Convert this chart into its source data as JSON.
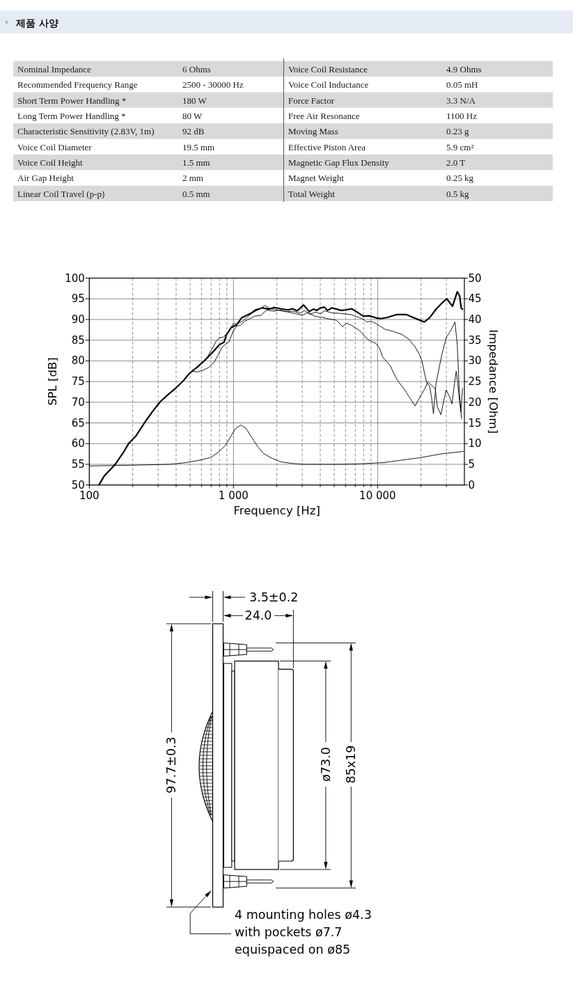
{
  "chart_data": [
    {
      "type": "other",
      "title": "제품 사양",
      "annotations": [
        "Nominal Impedance",
        "6 Ohms",
        "Voice Coil Resistance",
        "4.9 Ohms",
        "Recommended Frequency Range",
        "2500 - 30000 Hz",
        "Voice Coil Inductance",
        "0.05 mH",
        "Short Term Power Handling *",
        "180 W",
        "Force Factor",
        "3.3 N/A",
        "Long Term Power Handling *",
        "80 W",
        "Free Air Resonance",
        "1100 Hz",
        "Characteristic Sensitivity (2.83V, 1m)",
        "92 dB",
        "Moving Mass",
        "0.23 g",
        "Voice Coil Diameter",
        "19.5 mm",
        "Effective Piston Area",
        "5.9 cm²",
        "Voice Coil Height",
        "1.5 mm",
        "Magnetic Gap Flux Density",
        "2.0 T",
        "Air Gap Height",
        "2 mm",
        "Magnet Weight",
        "0.25 kg",
        "Linear Coil Travel (p-p)",
        "0.5 mm",
        "Total Weight",
        "0.5 kg"
      ]
    },
    {
      "type": "line",
      "xlabel": "Frequency [Hz]",
      "ylabel": "SPL [dB]",
      "y2label": "Impedance [Ohm]",
      "log": "x",
      "grid": true,
      "xlim": [
        100,
        40000
      ],
      "xticks": [
        100,
        {
          "value": 200,
          "label": null
        },
        {
          "value": 300,
          "label": null
        },
        {
          "value": 400,
          "label": null
        },
        {
          "value": 500,
          "label": null
        },
        {
          "value": 600,
          "label": null
        },
        {
          "value": 700,
          "label": null
        },
        {
          "value": 800,
          "label": null
        },
        {
          "value": 900,
          "label": null
        },
        {
          "value": 1000,
          "label": "1 000"
        },
        {
          "value": 2000,
          "label": null
        },
        {
          "value": 3000,
          "label": null
        },
        {
          "value": 4000,
          "label": null
        },
        {
          "value": 5000,
          "label": null
        },
        {
          "value": 6000,
          "label": null
        },
        {
          "value": 7000,
          "label": null
        },
        {
          "value": 8000,
          "label": null
        },
        {
          "value": 9000,
          "label": null
        },
        {
          "value": 10000,
          "label": "10 000"
        },
        {
          "value": 20000,
          "label": null
        },
        {
          "value": 30000,
          "label": null
        }
      ],
      "ylim": [
        50,
        100
      ],
      "yticks": [
        50,
        55,
        60,
        65,
        70,
        75,
        80,
        85,
        90,
        95,
        100
      ],
      "y2lim": [
        0,
        50
      ],
      "y2ticks": [
        0,
        5,
        10,
        15,
        20,
        25,
        30,
        35,
        40,
        45,
        50
      ],
      "series": [
        {
          "color": "#000000",
          "x": [
            117,
            127,
            152,
            174,
            188,
            210,
            239,
            272,
            310,
            353,
            395,
            449,
            493,
            551,
            627,
            714,
            798,
            860,
            891,
            962,
            1050,
            1140,
            1220,
            1320,
            1420,
            1590,
            1770,
            1910,
            2130,
            2380,
            2570,
            2770,
            3070,
            3350,
            3580,
            3790,
            4000,
            4280,
            4480,
            4820,
            5590,
            6020,
            6600,
            7120,
            7950,
            8730,
            9750,
            10500,
            11700,
            13600,
            15800,
            17600,
            19700,
            21100,
            22900,
            25600,
            28000,
            30200,
            33100,
            35700,
            37100,
            38000,
            38800
          ],
          "values": [
            50.1,
            52.2,
            55.1,
            58.1,
            60.1,
            61.8,
            64.8,
            67.6,
            70.1,
            71.9,
            73.3,
            75.2,
            76.9,
            78.3,
            80.0,
            82.0,
            83.9,
            84.5,
            86.2,
            88.0,
            88.7,
            90.4,
            90.9,
            91.5,
            92.3,
            92.8,
            92.5,
            92.9,
            92.6,
            92.3,
            92.6,
            92.1,
            93.5,
            91.9,
            92.5,
            92.2,
            92.8,
            93.0,
            92.2,
            92.8,
            92.2,
            92.3,
            92.6,
            91.9,
            90.8,
            90.9,
            90.4,
            90.2,
            90.5,
            91.2,
            91.2,
            90.5,
            89.8,
            89.4,
            90.4,
            92.6,
            94.0,
            95.0,
            93.2,
            96.7,
            95.7,
            92.8,
            92.5
          ]
        },
        {
          "color": "#000000",
          "x": [
            520,
            560,
            600,
            650,
            700,
            760,
            800,
            850,
            900,
            950,
            1000,
            1060,
            1150,
            1250,
            1350,
            1500,
            1650,
            1800,
            2000,
            2300,
            2600,
            2900,
            3100,
            3400,
            3700,
            4000,
            4300,
            4800,
            5400,
            6500,
            7800,
            8400,
            9050,
            9750,
            11300,
            12600,
            14700,
            16400,
            18000,
            19400,
            20300,
            21100,
            21900,
            23000,
            23700,
            24400,
            25400,
            26500,
            28000,
            29900,
            32500,
            34400,
            35700,
            36800,
            38200
          ],
          "values": [
            77.7,
            78.3,
            79.3,
            80.6,
            82.5,
            84.8,
            85.6,
            85.7,
            86.6,
            87.8,
            89.0,
            88.9,
            89.5,
            90.6,
            91.6,
            92.4,
            93.4,
            92.6,
            92.3,
            91.9,
            92.0,
            91.5,
            92.2,
            91.2,
            91.8,
            91.4,
            92.1,
            91.6,
            91.5,
            91.2,
            90.2,
            89.4,
            89.6,
            89.0,
            87.6,
            87.2,
            86.4,
            85.3,
            83.6,
            81.7,
            80.0,
            77.2,
            74.7,
            73.8,
            71.0,
            67.2,
            74.4,
            77.7,
            81.7,
            85.6,
            87.6,
            89.4,
            83.9,
            73.3,
            66.0
          ]
        },
        {
          "color": "#000000",
          "x": [
            520,
            560,
            620,
            680,
            730,
            780,
            830,
            880,
            930,
            1000,
            1050,
            1120,
            1200,
            1300,
            1400,
            1550,
            1700,
            1900,
            2100,
            2400,
            2700,
            3000,
            3300,
            3600,
            3900,
            4150,
            4640,
            5190,
            5700,
            6130,
            6730,
            7520,
            8200,
            8720,
            9750,
            10300,
            10900,
            12200,
            13600,
            15200,
            17000,
            18200,
            19700,
            21300,
            22300,
            23700,
            25100,
            26000,
            27500,
            28600,
            29900,
            31300,
            32800,
            34100,
            35100,
            36000,
            37100,
            37800,
            38800
          ],
          "values": [
            77.5,
            77.3,
            77.8,
            78.5,
            79.6,
            81.3,
            83.2,
            84.0,
            84.6,
            87.3,
            88.4,
            88.6,
            89.6,
            90.2,
            90.8,
            91.0,
            92.3,
            92.0,
            92.3,
            91.8,
            91.4,
            91.0,
            91.7,
            90.9,
            90.6,
            90.5,
            90.1,
            89.8,
            88.3,
            89.1,
            88.4,
            87.3,
            85.8,
            85.0,
            84.2,
            83.1,
            80.8,
            78.9,
            75.5,
            73.3,
            70.7,
            69.1,
            71.3,
            73.3,
            74.9,
            74.1,
            73.3,
            68.8,
            67.0,
            69.9,
            73.0,
            71.6,
            69.6,
            74.4,
            77.5,
            74.4,
            69.9,
            67.6,
            73.3
          ]
        },
        {
          "color": "#000000",
          "axis": "y2",
          "x": [
            100,
            206,
            360,
            467,
            605,
            700,
            783,
            876,
            942,
            1035,
            1130,
            1220,
            1340,
            1470,
            1620,
            1840,
            2130,
            2560,
            3090,
            5390,
            7250,
            10900,
            19700,
            28600,
            39400
          ],
          "values": [
            4.6,
            4.8,
            5.0,
            5.4,
            6.1,
            6.7,
            7.9,
            9.5,
            11.3,
            13.7,
            14.5,
            13.7,
            11.5,
            9.3,
            7.6,
            6.5,
            5.6,
            5.2,
            5.0,
            5.0,
            5.1,
            5.4,
            6.6,
            7.6,
            8.1
          ]
        }
      ]
    },
    {
      "type": "other",
      "annotations": [
        "3.5±0.2",
        "24.0",
        "97.7±0.3",
        "ø73.0",
        "85x19",
        "4 mounting holes ø4.3",
        "with pockets ø7.7",
        "equispaced on ø85"
      ]
    }
  ]
}
